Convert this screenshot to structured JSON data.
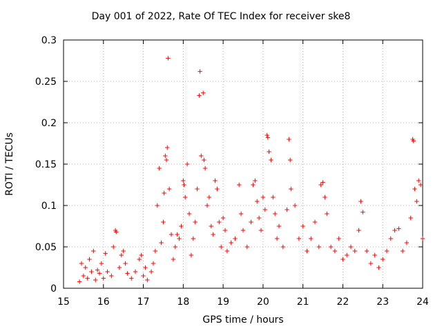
{
  "chart_data": {
    "type": "scatter",
    "title": "Day 001 of 2022, Rate Of TEC Index for receiver ske8",
    "xlabel": "GPS time / hours",
    "ylabel": "ROTI / TECUs",
    "xlim": [
      15,
      24
    ],
    "ylim": [
      0,
      0.3
    ],
    "x_ticks": [
      "15",
      "16",
      "17",
      "18",
      "19",
      "20",
      "21",
      "22",
      "23",
      "24"
    ],
    "y_ticks": [
      "0",
      "0.05",
      "0.1",
      "0.15",
      "0.2",
      "0.25",
      "0.3"
    ],
    "grid": true,
    "marker": "+",
    "colors": {
      "points": "#ff0000",
      "grid": "#a0a0a0",
      "axis": "#000000"
    },
    "series": [
      {
        "name": "ROTI",
        "points": [
          [
            15.4,
            0.008
          ],
          [
            15.45,
            0.03
          ],
          [
            15.5,
            0.015
          ],
          [
            15.55,
            0.025
          ],
          [
            15.6,
            0.012
          ],
          [
            15.65,
            0.035
          ],
          [
            15.7,
            0.02
          ],
          [
            15.75,
            0.045
          ],
          [
            15.8,
            0.01
          ],
          [
            15.85,
            0.022
          ],
          [
            15.9,
            0.018
          ],
          [
            15.95,
            0.03
          ],
          [
            16.0,
            0.012
          ],
          [
            16.05,
            0.042
          ],
          [
            16.1,
            0.02
          ],
          [
            16.2,
            0.015
          ],
          [
            16.25,
            0.05
          ],
          [
            16.3,
            0.07
          ],
          [
            16.32,
            0.068
          ],
          [
            16.4,
            0.025
          ],
          [
            16.45,
            0.04
          ],
          [
            16.5,
            0.045
          ],
          [
            16.55,
            0.03
          ],
          [
            16.6,
            0.018
          ],
          [
            16.7,
            0.012
          ],
          [
            16.8,
            0.02
          ],
          [
            16.9,
            0.035
          ],
          [
            16.95,
            0.04
          ],
          [
            17.0,
            0.015
          ],
          [
            17.05,
            0.025
          ],
          [
            17.1,
            0.01
          ],
          [
            17.2,
            0.02
          ],
          [
            17.25,
            0.03
          ],
          [
            17.3,
            0.045
          ],
          [
            17.35,
            0.1
          ],
          [
            17.4,
            0.145
          ],
          [
            17.45,
            0.055
          ],
          [
            17.5,
            0.08
          ],
          [
            17.52,
            0.115
          ],
          [
            17.55,
            0.16
          ],
          [
            17.58,
            0.155
          ],
          [
            17.6,
            0.17
          ],
          [
            17.62,
            0.278
          ],
          [
            17.65,
            0.12
          ],
          [
            17.7,
            0.065
          ],
          [
            17.75,
            0.035
          ],
          [
            17.8,
            0.05
          ],
          [
            17.85,
            0.065
          ],
          [
            17.9,
            0.06
          ],
          [
            17.95,
            0.075
          ],
          [
            18.0,
            0.13
          ],
          [
            18.02,
            0.125
          ],
          [
            18.05,
            0.11
          ],
          [
            18.1,
            0.15
          ],
          [
            18.15,
            0.09
          ],
          [
            18.2,
            0.04
          ],
          [
            18.25,
            0.06
          ],
          [
            18.3,
            0.08
          ],
          [
            18.35,
            0.12
          ],
          [
            18.4,
            0.233
          ],
          [
            18.42,
            0.262
          ],
          [
            18.45,
            0.16
          ],
          [
            18.5,
            0.236
          ],
          [
            18.52,
            0.155
          ],
          [
            18.55,
            0.145
          ],
          [
            18.6,
            0.1
          ],
          [
            18.65,
            0.11
          ],
          [
            18.7,
            0.075
          ],
          [
            18.75,
            0.065
          ],
          [
            18.8,
            0.13
          ],
          [
            18.85,
            0.12
          ],
          [
            18.9,
            0.08
          ],
          [
            18.95,
            0.05
          ],
          [
            19.0,
            0.085
          ],
          [
            19.05,
            0.07
          ],
          [
            19.1,
            0.045
          ],
          [
            19.2,
            0.055
          ],
          [
            19.3,
            0.06
          ],
          [
            19.4,
            0.125
          ],
          [
            19.45,
            0.09
          ],
          [
            19.5,
            0.07
          ],
          [
            19.6,
            0.05
          ],
          [
            19.7,
            0.08
          ],
          [
            19.75,
            0.125
          ],
          [
            19.8,
            0.13
          ],
          [
            19.85,
            0.105
          ],
          [
            19.9,
            0.085
          ],
          [
            19.95,
            0.07
          ],
          [
            20.0,
            0.11
          ],
          [
            20.05,
            0.095
          ],
          [
            20.1,
            0.185
          ],
          [
            20.12,
            0.182
          ],
          [
            20.15,
            0.165
          ],
          [
            20.2,
            0.155
          ],
          [
            20.25,
            0.11
          ],
          [
            20.3,
            0.09
          ],
          [
            20.35,
            0.06
          ],
          [
            20.4,
            0.075
          ],
          [
            20.5,
            0.05
          ],
          [
            20.6,
            0.095
          ],
          [
            20.65,
            0.18
          ],
          [
            20.68,
            0.155
          ],
          [
            20.7,
            0.12
          ],
          [
            20.8,
            0.1
          ],
          [
            20.9,
            0.06
          ],
          [
            21.0,
            0.075
          ],
          [
            21.1,
            0.045
          ],
          [
            21.2,
            0.06
          ],
          [
            21.3,
            0.08
          ],
          [
            21.4,
            0.05
          ],
          [
            21.45,
            0.125
          ],
          [
            21.5,
            0.128
          ],
          [
            21.55,
            0.11
          ],
          [
            21.6,
            0.09
          ],
          [
            21.7,
            0.05
          ],
          [
            21.8,
            0.045
          ],
          [
            21.9,
            0.06
          ],
          [
            22.0,
            0.035
          ],
          [
            22.1,
            0.04
          ],
          [
            22.2,
            0.05
          ],
          [
            22.3,
            0.045
          ],
          [
            22.4,
            0.07
          ],
          [
            22.45,
            0.105
          ],
          [
            22.5,
            0.092
          ],
          [
            22.6,
            0.045
          ],
          [
            22.7,
            0.03
          ],
          [
            22.8,
            0.04
          ],
          [
            22.9,
            0.025
          ],
          [
            23.0,
            0.035
          ],
          [
            23.1,
            0.045
          ],
          [
            23.2,
            0.06
          ],
          [
            23.3,
            0.07
          ],
          [
            23.4,
            0.072
          ],
          [
            23.5,
            0.045
          ],
          [
            23.6,
            0.055
          ],
          [
            23.7,
            0.085
          ],
          [
            23.75,
            0.18
          ],
          [
            23.77,
            0.178
          ],
          [
            23.8,
            0.12
          ],
          [
            23.85,
            0.105
          ],
          [
            23.9,
            0.13
          ],
          [
            23.95,
            0.125
          ],
          [
            24.0,
            0.06
          ]
        ]
      }
    ]
  }
}
